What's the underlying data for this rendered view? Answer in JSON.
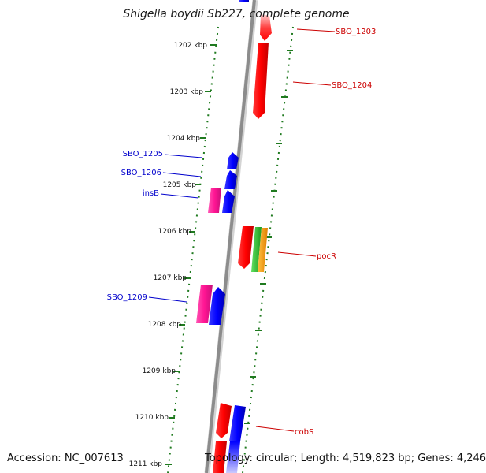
{
  "title": "Shigella boydii Sb227, complete genome",
  "accession": "Accession: NC_007613",
  "topology": "Topology: circular; Length: 4,519,823 bp; Genes: 4,246",
  "ticks": [
    "1202 kbp",
    "1203 kbp",
    "1204 kbp",
    "1205 kbp",
    "1206 kbp",
    "1207 kbp",
    "1208 kbp",
    "1209 kbp",
    "1210 kbp",
    "1211 kbp"
  ],
  "gene_labels": {
    "sbo_1203": "SBO_1203",
    "sbo_1204": "SBO_1204",
    "sbo_1205": "SBO_1205",
    "sbo_1206": "SBO_1206",
    "insb": "insB",
    "pocr": "pocR",
    "sbo_1209": "SBO_1209",
    "cobs": "cobS"
  },
  "colors": {
    "forward_label": "#0000cc",
    "reverse_label": "#cc0000",
    "tick": "#1f7a1f"
  }
}
